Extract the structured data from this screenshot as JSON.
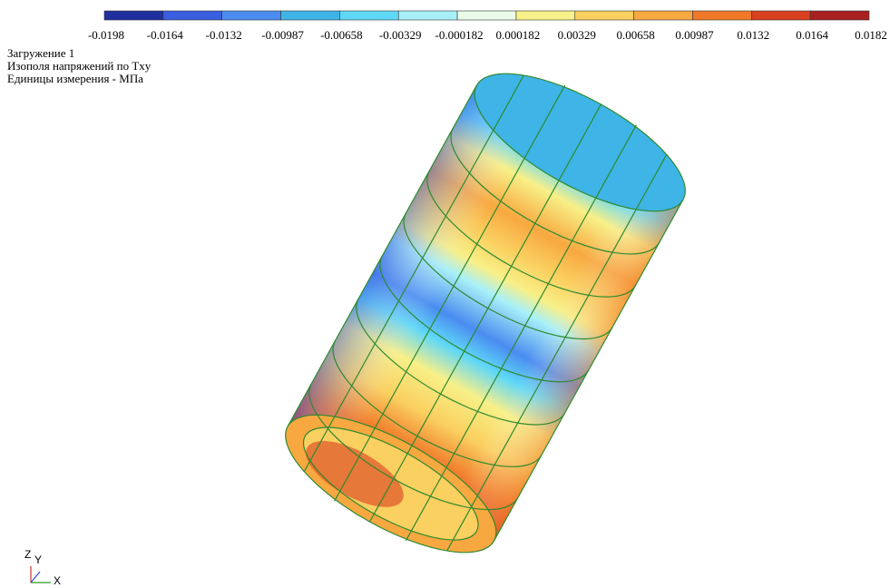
{
  "legend": {
    "labels": [
      "-0.0198",
      "-0.0164",
      "-0.0132",
      "-0.00987",
      "-0.00658",
      "-0.00329",
      "-0.000182",
      "0.000182",
      "0.00329",
      "0.00658",
      "0.00987",
      "0.0132",
      "0.0164",
      "0.0182"
    ],
    "colors": [
      "#1f2f9e",
      "#3a5ee0",
      "#4a8cf0",
      "#3fb4e6",
      "#5fd8f8",
      "#a8f0f8",
      "#eafbea",
      "#f8f088",
      "#fad060",
      "#f8a840",
      "#f07828",
      "#d84020",
      "#a82020"
    ]
  },
  "info": {
    "lines": [
      "Загружение  1",
      "Изополя напряжений по Txy",
      "Единицы измерения - МПа"
    ]
  },
  "axes": {
    "z": "Z",
    "y": "Y",
    "x": "X"
  }
}
